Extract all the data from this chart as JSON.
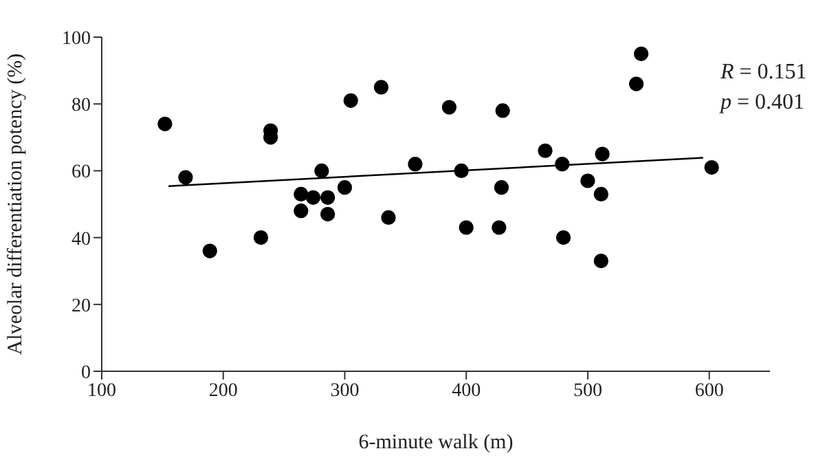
{
  "chart_data": {
    "type": "scatter",
    "xlabel": "6-minute walk (m)",
    "ylabel": "Alveolar differentiation potency (%)",
    "xlim": [
      100,
      650
    ],
    "xticks": [
      100,
      200,
      300,
      400,
      500,
      600
    ],
    "ylim": [
      0,
      100
    ],
    "yticks": [
      0,
      20,
      40,
      60,
      80,
      100
    ],
    "annotations": [
      "R = 0.151",
      "p = 0.401"
    ],
    "series": [
      {
        "color": "#000000",
        "marker": "circle",
        "x": [
          152,
          169,
          189,
          231,
          239,
          239,
          264,
          264,
          274,
          281,
          286,
          286,
          300,
          305,
          330,
          336,
          358,
          386,
          396,
          400,
          429,
          430,
          427,
          465,
          479,
          480,
          500,
          511,
          512,
          511,
          540,
          544,
          602
        ],
        "values": [
          74,
          58,
          36,
          40,
          72,
          70,
          53,
          48,
          52,
          60,
          52,
          47,
          55,
          81,
          85,
          46,
          62,
          79,
          60,
          43,
          55,
          78,
          43,
          66,
          62,
          40,
          57,
          53,
          65,
          33,
          86,
          95,
          61
        ]
      },
      {
        "type": "line",
        "color": "#000000",
        "line_style": "solid",
        "x": [
          155,
          595
        ],
        "values": [
          55.4,
          63.9
        ]
      }
    ]
  }
}
